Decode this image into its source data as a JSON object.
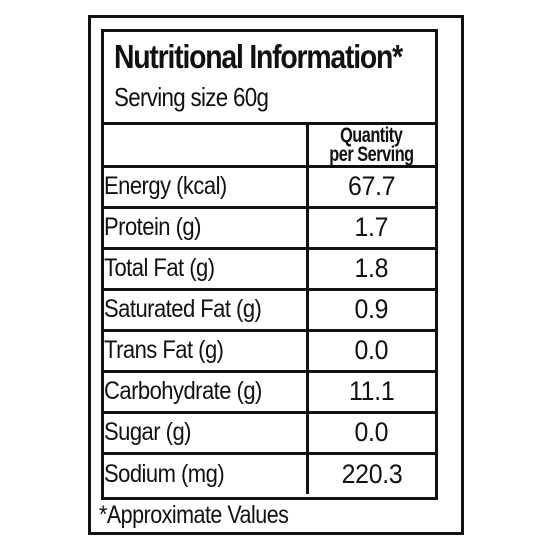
{
  "label": {
    "title": "Nutritional Information*",
    "serving_size": "Serving size 60g",
    "column_header_line1": "Quantity",
    "column_header_line2": "per Serving",
    "rows": [
      {
        "nutrient": "Energy (kcal)",
        "value": "67.7"
      },
      {
        "nutrient": "Protein (g)",
        "value": "1.7"
      },
      {
        "nutrient": "Total Fat (g)",
        "value": "1.8"
      },
      {
        "nutrient": "Saturated Fat (g)",
        "value": "0.9"
      },
      {
        "nutrient": "Trans Fat (g)",
        "value": "0.0"
      },
      {
        "nutrient": "Carbohydrate (g)",
        "value": "11.1"
      },
      {
        "nutrient": "Sugar (g)",
        "value": "0.0"
      },
      {
        "nutrient": "Sodium (mg)",
        "value": "220.3"
      }
    ],
    "footnote": "*Approximate Values"
  },
  "colors": {
    "ink": "#111111",
    "background": "#ffffff"
  }
}
